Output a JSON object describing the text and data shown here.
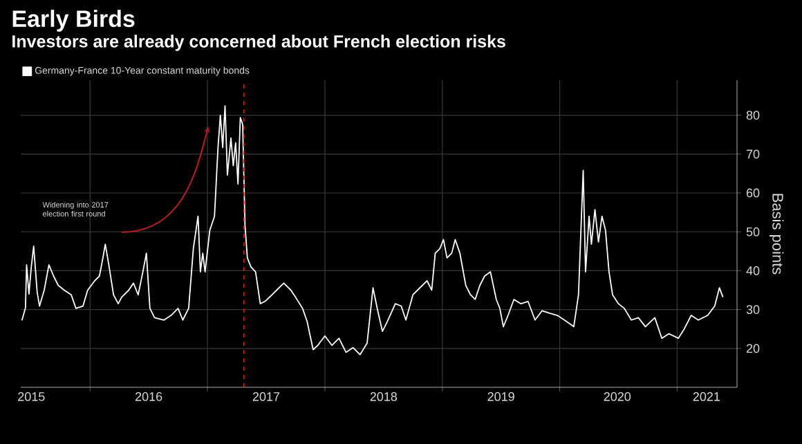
{
  "chart_data": {
    "type": "line",
    "title": "Early Birds",
    "subtitle": "Investors are already concerned about French election risks",
    "ylabel": "Basis points",
    "annotations": [
      "Widening into 2017 election first round"
    ],
    "xlim": [
      2015.41,
      2021.51
    ],
    "ylim": [
      10,
      89
    ],
    "xticks": [
      {
        "value": 2015.5,
        "label": "2015"
      },
      {
        "value": 2016,
        "label": null
      },
      {
        "value": 2016.5,
        "label": "2016"
      },
      {
        "value": 2017,
        "label": null
      },
      {
        "value": 2017.5,
        "label": "2017"
      },
      {
        "value": 2018,
        "label": null
      },
      {
        "value": 2018.5,
        "label": "2018"
      },
      {
        "value": 2019,
        "label": null
      },
      {
        "value": 2019.5,
        "label": "2019"
      },
      {
        "value": 2020,
        "label": null
      },
      {
        "value": 2020.49,
        "label": "2020"
      },
      {
        "value": 2021,
        "label": null
      },
      {
        "value": 2021.25,
        "label": "2021"
      }
    ],
    "yticks": [
      20,
      30,
      40,
      50,
      60,
      70,
      80
    ],
    "grid": true,
    "legend": "top left",
    "marker": "none",
    "line_style": "solid",
    "ref_lines": [
      {
        "axis": "x",
        "value": 2017.31,
        "color": "#c8202c",
        "line_style": "dashed"
      }
    ],
    "series": [
      {
        "name": "Germany-France 10-Year constant maturity bonds",
        "color": "#ffffff",
        "x": [
          2015.42,
          2015.45,
          2015.46,
          2015.48,
          2015.5,
          2015.52,
          2015.55,
          2015.57,
          2015.61,
          2015.65,
          2015.69,
          2015.73,
          2015.78,
          2015.84,
          2015.88,
          2015.94,
          2015.98,
          2016.04,
          2016.08,
          2016.11,
          2016.13,
          2016.16,
          2016.2,
          2016.24,
          2016.27,
          2016.33,
          2016.37,
          2016.41,
          2016.45,
          2016.48,
          2016.51,
          2016.55,
          2016.63,
          2016.69,
          2016.75,
          2016.79,
          2016.84,
          2016.88,
          2016.92,
          2016.94,
          2016.96,
          2016.98,
          2017.02,
          2017.06,
          2017.09,
          2017.11,
          2017.13,
          2017.15,
          2017.17,
          2017.2,
          2017.22,
          2017.24,
          2017.26,
          2017.28,
          2017.3,
          2017.32,
          2017.34,
          2017.37,
          2017.41,
          2017.45,
          2017.49,
          2017.55,
          2017.59,
          2017.65,
          2017.71,
          2017.75,
          2017.81,
          2017.85,
          2017.9,
          2017.94,
          2018.0,
          2018.06,
          2018.12,
          2018.18,
          2018.24,
          2018.3,
          2018.36,
          2018.41,
          2018.45,
          2018.49,
          2018.53,
          2018.6,
          2018.65,
          2018.69,
          2018.75,
          2018.81,
          2018.87,
          2018.91,
          2018.94,
          2018.98,
          2019.01,
          2019.04,
          2019.08,
          2019.11,
          2019.15,
          2019.2,
          2019.24,
          2019.28,
          2019.32,
          2019.36,
          2019.41,
          2019.46,
          2019.49,
          2019.52,
          2019.56,
          2019.61,
          2019.67,
          2019.73,
          2019.79,
          2019.85,
          2019.91,
          2019.98,
          2020.04,
          2020.12,
          2020.16,
          2020.2,
          2020.22,
          2020.25,
          2020.27,
          2020.3,
          2020.33,
          2020.36,
          2020.39,
          2020.42,
          2020.45,
          2020.5,
          2020.55,
          2020.61,
          2020.67,
          2020.73,
          2020.81,
          2020.87,
          2020.93,
          2021.01,
          2021.06,
          2021.12,
          2021.18,
          2021.26,
          2021.32,
          2021.36,
          2021.39
        ],
        "values": [
          27.2,
          30.4,
          41.5,
          34,
          41,
          46.3,
          34.4,
          30.9,
          35,
          41.5,
          38.6,
          36.2,
          35,
          33.8,
          30.3,
          30.9,
          35,
          37.4,
          38.6,
          43.3,
          46.8,
          41.5,
          33.8,
          31.5,
          33.2,
          35,
          36.8,
          33.8,
          39.7,
          44.5,
          30.3,
          27.9,
          27.3,
          28.5,
          30.3,
          27.3,
          30.3,
          45.7,
          54,
          39.7,
          44.5,
          39.7,
          50.4,
          54,
          71.7,
          80,
          71.7,
          82.4,
          64.6,
          74.1,
          67,
          72.9,
          62.3,
          79.4,
          77.6,
          51.6,
          43.3,
          41,
          39.7,
          31.5,
          32.1,
          33.8,
          35,
          36.8,
          35,
          33.2,
          30.3,
          26.8,
          19.7,
          20.8,
          23.2,
          20.8,
          22.6,
          19,
          20.2,
          18.4,
          21.4,
          35.6,
          29.7,
          24.4,
          26.8,
          31.5,
          30.9,
          27.3,
          33.8,
          35.6,
          37.4,
          35,
          44.5,
          45.7,
          48,
          43.3,
          44.5,
          48,
          44.5,
          36.2,
          33.8,
          32.6,
          36.2,
          38.6,
          39.7,
          32.6,
          30.3,
          25.6,
          28.5,
          32.6,
          31.5,
          32.1,
          27.3,
          29.7,
          29.1,
          28.5,
          27.3,
          25.6,
          33.8,
          65.8,
          39.7,
          54,
          46.8,
          55.7,
          47.4,
          54,
          50.4,
          39.7,
          33.8,
          31.5,
          30.3,
          27.3,
          27.9,
          25.6,
          27.9,
          22.6,
          23.8,
          22.6,
          25,
          28.5,
          27.3,
          28.5,
          30.9,
          35.6,
          33.2
        ]
      }
    ]
  }
}
